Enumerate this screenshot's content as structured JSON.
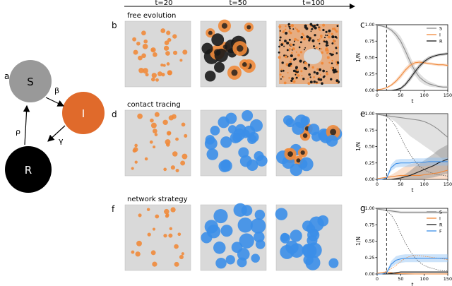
{
  "timeline": {
    "labels": [
      "t=20",
      "t=50",
      "t=100"
    ]
  },
  "sir_diagram": {
    "panel_letter": "a",
    "nodes": [
      {
        "name": "S",
        "color": "#999999"
      },
      {
        "name": "I",
        "color": "#e06a2b"
      },
      {
        "name": "R",
        "color": "#000000"
      }
    ],
    "rates": {
      "s_to_i": "β",
      "i_to_r": "γ",
      "r_to_s": "ρ"
    }
  },
  "rows": [
    {
      "image_letter": "b",
      "chart_letter": "c",
      "title": "free evolution"
    },
    {
      "image_letter": "d",
      "chart_letter": "e",
      "title": "contact tracing"
    },
    {
      "image_letter": "f",
      "chart_letter": "g",
      "title": "network strategy"
    }
  ],
  "colors": {
    "S": "#999999",
    "I": "#f0893a",
    "R": "#1a1a1a",
    "F": "#3b8ee8",
    "lattice": "#d9d9d9"
  },
  "chart_data": [
    {
      "type": "line",
      "ylabel": "1/N",
      "xlabel": "t",
      "xlim": [
        0,
        150
      ],
      "ylim": [
        0,
        1
      ],
      "xticks": [
        0,
        50,
        100,
        150
      ],
      "yticks": [
        "0.00",
        "0.25",
        "0.50",
        "0.75",
        "1.00"
      ],
      "vline_t": 20,
      "legend": [
        "S",
        "I",
        "R"
      ],
      "series": [
        {
          "name": "S",
          "x": [
            0,
            10,
            20,
            30,
            40,
            50,
            60,
            70,
            80,
            90,
            100,
            110,
            120,
            130,
            140,
            150
          ],
          "y": [
            0.99,
            0.98,
            0.96,
            0.92,
            0.85,
            0.75,
            0.6,
            0.44,
            0.3,
            0.2,
            0.14,
            0.1,
            0.08,
            0.06,
            0.05,
            0.05
          ],
          "band": [
            0.01,
            0.01,
            0.02,
            0.03,
            0.05,
            0.07,
            0.08,
            0.08,
            0.07,
            0.06,
            0.05,
            0.04,
            0.03,
            0.02,
            0.02,
            0.02
          ]
        },
        {
          "name": "I",
          "x": [
            0,
            10,
            20,
            30,
            40,
            50,
            60,
            70,
            80,
            90,
            100,
            110,
            120,
            130,
            140,
            150
          ],
          "y": [
            0.01,
            0.02,
            0.04,
            0.08,
            0.14,
            0.22,
            0.31,
            0.38,
            0.42,
            0.43,
            0.42,
            0.41,
            0.4,
            0.39,
            0.39,
            0.38
          ],
          "band": [
            0.005,
            0.01,
            0.01,
            0.02,
            0.03,
            0.04,
            0.04,
            0.04,
            0.03,
            0.03,
            0.02,
            0.02,
            0.02,
            0.02,
            0.02,
            0.02
          ]
        },
        {
          "name": "R",
          "x": [
            0,
            10,
            20,
            30,
            40,
            50,
            60,
            70,
            80,
            90,
            100,
            110,
            120,
            130,
            140,
            150
          ],
          "y": [
            0.0,
            0.0,
            0.0,
            0.0,
            0.01,
            0.03,
            0.09,
            0.18,
            0.28,
            0.37,
            0.44,
            0.49,
            0.52,
            0.54,
            0.55,
            0.56
          ],
          "band": [
            0,
            0,
            0,
            0.005,
            0.01,
            0.02,
            0.03,
            0.04,
            0.04,
            0.04,
            0.03,
            0.03,
            0.02,
            0.02,
            0.02,
            0.02
          ]
        }
      ]
    },
    {
      "type": "line",
      "ylabel": "1/N",
      "xlabel": "t",
      "xlim": [
        0,
        150
      ],
      "ylim": [
        0,
        1
      ],
      "xticks": [
        0,
        50,
        100,
        150
      ],
      "yticks": [
        "0.00",
        "0.25",
        "0.50",
        "0.75",
        "1.00"
      ],
      "vline_t": 20,
      "legend": [],
      "series": [
        {
          "name": "S",
          "x": [
            0,
            10,
            20,
            30,
            40,
            50,
            60,
            70,
            80,
            90,
            100,
            110,
            120,
            130,
            140,
            150
          ],
          "y": [
            0.99,
            0.98,
            0.97,
            0.96,
            0.95,
            0.94,
            0.93,
            0.92,
            0.91,
            0.9,
            0.88,
            0.85,
            0.81,
            0.76,
            0.7,
            0.64
          ],
          "band": [
            0.01,
            0.01,
            0.02,
            0.04,
            0.08,
            0.14,
            0.2,
            0.26,
            0.3,
            0.34,
            0.37,
            0.39,
            0.4,
            0.4,
            0.4,
            0.4
          ]
        },
        {
          "name": "I",
          "x": [
            0,
            10,
            20,
            30,
            40,
            50,
            60,
            70,
            80,
            90,
            100,
            110,
            120,
            130,
            140,
            150
          ],
          "y": [
            0.01,
            0.02,
            0.03,
            0.04,
            0.05,
            0.06,
            0.06,
            0.06,
            0.06,
            0.06,
            0.07,
            0.08,
            0.09,
            0.1,
            0.12,
            0.14
          ],
          "band": [
            0.005,
            0.01,
            0.01,
            0.03,
            0.06,
            0.1,
            0.14,
            0.17,
            0.19,
            0.2,
            0.2,
            0.19,
            0.18,
            0.17,
            0.16,
            0.15
          ]
        },
        {
          "name": "R",
          "x": [
            0,
            10,
            20,
            30,
            40,
            50,
            60,
            70,
            80,
            90,
            100,
            110,
            120,
            130,
            140,
            150
          ],
          "y": [
            0.0,
            0.0,
            0.0,
            0.0,
            0.01,
            0.02,
            0.04,
            0.06,
            0.09,
            0.12,
            0.15,
            0.18,
            0.21,
            0.25,
            0.28,
            0.31
          ],
          "band": [
            0,
            0,
            0,
            0.005,
            0.01,
            0.02,
            0.04,
            0.07,
            0.1,
            0.12,
            0.14,
            0.16,
            0.18,
            0.2,
            0.21,
            0.22
          ]
        },
        {
          "name": "F",
          "x": [
            0,
            10,
            20,
            30,
            40,
            50,
            60,
            70,
            80,
            90,
            100,
            110,
            120,
            130,
            140,
            150
          ],
          "y": [
            0.0,
            0.0,
            0.02,
            0.18,
            0.24,
            0.25,
            0.25,
            0.25,
            0.26,
            0.26,
            0.26,
            0.27,
            0.27,
            0.27,
            0.27,
            0.27
          ],
          "band": [
            0,
            0,
            0.01,
            0.05,
            0.06,
            0.06,
            0.06,
            0.06,
            0.06,
            0.06,
            0.06,
            0.06,
            0.06,
            0.06,
            0.06,
            0.06
          ]
        }
      ],
      "reference_dotted": [
        0.99,
        0.98,
        0.96,
        0.9,
        0.8,
        0.65,
        0.5,
        0.38,
        0.28,
        0.2,
        0.15,
        0.11,
        0.09,
        0.07,
        0.06,
        0.05
      ]
    },
    {
      "type": "line",
      "ylabel": "1/N",
      "xlabel": "t",
      "xlim": [
        0,
        150
      ],
      "ylim": [
        0,
        1
      ],
      "xticks": [
        0,
        50,
        100,
        150
      ],
      "yticks": [
        "0.00",
        "0.25",
        "0.50",
        "0.75",
        "1.00"
      ],
      "vline_t": 20,
      "legend": [
        "S",
        "I",
        "R",
        "F"
      ],
      "series": [
        {
          "name": "S",
          "x": [
            0,
            10,
            20,
            30,
            40,
            50,
            60,
            70,
            80,
            90,
            100,
            110,
            120,
            130,
            140,
            150
          ],
          "y": [
            0.99,
            0.98,
            0.97,
            0.96,
            0.95,
            0.94,
            0.94,
            0.94,
            0.94,
            0.94,
            0.94,
            0.94,
            0.94,
            0.94,
            0.94,
            0.94
          ],
          "band": [
            0.01,
            0.01,
            0.01,
            0.02,
            0.02,
            0.02,
            0.02,
            0.02,
            0.02,
            0.02,
            0.02,
            0.02,
            0.02,
            0.02,
            0.02,
            0.02
          ]
        },
        {
          "name": "I",
          "x": [
            0,
            10,
            20,
            30,
            40,
            50,
            60,
            70,
            80,
            90,
            100,
            110,
            120,
            130,
            140,
            150
          ],
          "y": [
            0.01,
            0.02,
            0.03,
            0.02,
            0.01,
            0.005,
            0.003,
            0.002,
            0.001,
            0.001,
            0.001,
            0.001,
            0.001,
            0.001,
            0.001,
            0.001
          ],
          "band": [
            0.005,
            0.01,
            0.01,
            0.01,
            0.005,
            0.003,
            0.002,
            0.001,
            0.001,
            0.001,
            0.001,
            0.001,
            0.001,
            0.001,
            0.001,
            0.001
          ]
        },
        {
          "name": "R",
          "x": [
            0,
            10,
            20,
            30,
            40,
            50,
            60,
            70,
            80,
            90,
            100,
            110,
            120,
            130,
            140,
            150
          ],
          "y": [
            0.0,
            0.0,
            0.0,
            0.01,
            0.02,
            0.03,
            0.03,
            0.03,
            0.03,
            0.03,
            0.03,
            0.03,
            0.03,
            0.03,
            0.03,
            0.03
          ],
          "band": [
            0,
            0,
            0,
            0.005,
            0.01,
            0.01,
            0.01,
            0.01,
            0.01,
            0.01,
            0.01,
            0.01,
            0.01,
            0.01,
            0.01,
            0.01
          ]
        },
        {
          "name": "F",
          "x": [
            0,
            10,
            20,
            30,
            40,
            50,
            60,
            70,
            80,
            90,
            100,
            110,
            120,
            130,
            140,
            150
          ],
          "y": [
            0.0,
            0.0,
            0.02,
            0.15,
            0.21,
            0.23,
            0.24,
            0.24,
            0.24,
            0.24,
            0.24,
            0.24,
            0.24,
            0.24,
            0.24,
            0.24
          ],
          "band": [
            0,
            0,
            0.01,
            0.05,
            0.06,
            0.06,
            0.06,
            0.06,
            0.06,
            0.06,
            0.06,
            0.06,
            0.06,
            0.06,
            0.06,
            0.06
          ]
        }
      ],
      "reference_dotted": [
        0.99,
        0.98,
        0.96,
        0.9,
        0.78,
        0.62,
        0.47,
        0.35,
        0.25,
        0.18,
        0.13,
        0.1,
        0.08,
        0.06,
        0.05,
        0.05
      ],
      "reference_dotted_I": [
        0.01,
        0.02,
        0.04,
        0.08,
        0.13,
        0.19,
        0.24,
        0.27,
        0.28,
        0.28,
        0.27,
        0.26,
        0.25,
        0.24,
        0.23,
        0.22
      ]
    }
  ]
}
